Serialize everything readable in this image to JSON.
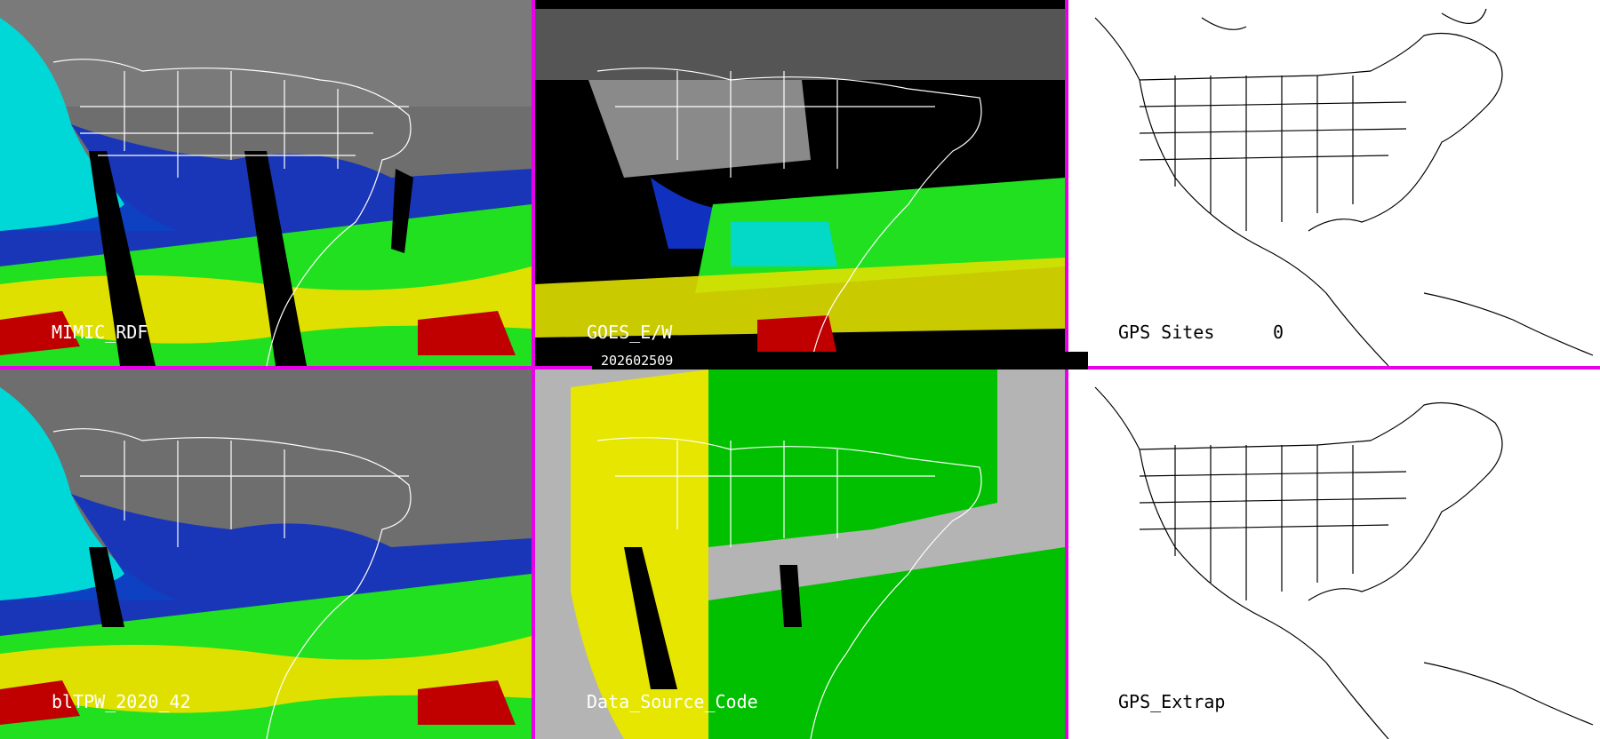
{
  "timestamp": "202602509",
  "panels": [
    {
      "id": "mimic",
      "label": "MIMIC_RDF",
      "value": ""
    },
    {
      "id": "goes",
      "label": "GOES_E/W",
      "value": ""
    },
    {
      "id": "gps-sites",
      "label": "GPS Sites",
      "value": "0"
    },
    {
      "id": "blend",
      "label": "blTPW_2020_42",
      "value": ""
    },
    {
      "id": "source",
      "label": "Data_Source_Code",
      "value": ""
    },
    {
      "id": "gps-extrap",
      "label": "GPS_Extrap",
      "value": ""
    }
  ],
  "colors": {
    "divider": "#e800e8",
    "tpw_dry": "#808080",
    "tpw_low": "#00d8d8",
    "tpw_mid": "#20e020",
    "tpw_high": "#e0e000",
    "tpw_max": "#c00000",
    "source_yellow": "#e6e600",
    "source_green": "#00c000",
    "source_gray": "#b4b4b4"
  }
}
